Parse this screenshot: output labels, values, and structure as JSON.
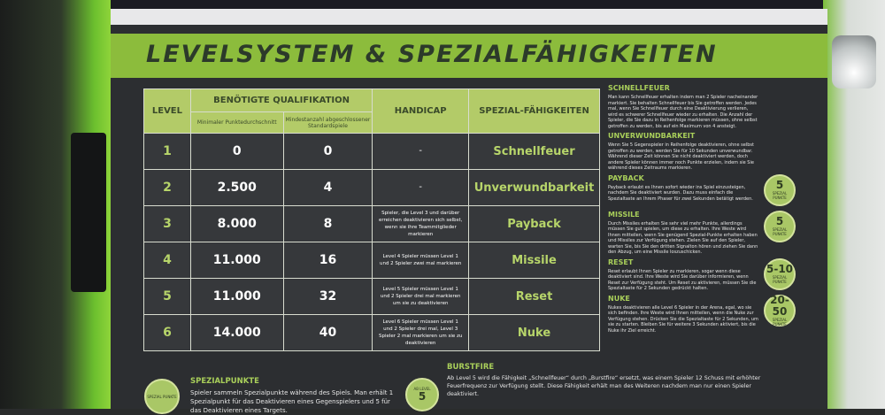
{
  "title": "LEVELSYSTEM & SPEZIALFÄHIGKEITEN",
  "table": {
    "headers": {
      "level": "LEVEL",
      "qualifikation": "BENÖTIGTE QUALIFIKATION",
      "punkte": "Minimaler Punktedurchschnitt",
      "spiele": "Mindestanzahl abgeschlossener Standardspiele",
      "handicap": "HANDICAP",
      "spezial": "SPEZIAL-FÄHIGKEITEN"
    },
    "rows": [
      {
        "level": "1",
        "punkte": "0",
        "spiele": "0",
        "handicap": "-",
        "spezial": "Schnellfeuer"
      },
      {
        "level": "2",
        "punkte": "2.500",
        "spiele": "4",
        "handicap": "-",
        "spezial": "Unverwundbarkeit"
      },
      {
        "level": "3",
        "punkte": "8.000",
        "spiele": "8",
        "handicap": "Spieler, die Level 3 und darüber erreichen deaktivieren sich selbst, wenn sie ihre Teammitglieder markieren",
        "spezial": "Payback"
      },
      {
        "level": "4",
        "punkte": "11.000",
        "spiele": "16",
        "handicap": "Level 4 Spieler müssen Level 1 und 2 Spieler zwei mal markieren",
        "spezial": "Missile"
      },
      {
        "level": "5",
        "punkte": "11.000",
        "spiele": "32",
        "handicap": "Level 5 Spieler müssen Level 1 und 2 Spieler drei mal markieren um sie zu deaktivieren",
        "spezial": "Reset"
      },
      {
        "level": "6",
        "punkte": "14.000",
        "spiele": "40",
        "handicap": "Level 6 Spieler müssen Level 1 und 2 Spieler drei mal, Level 3 Spieler 2 mal markieren um sie zu deaktivieren",
        "spezial": "Nuke"
      }
    ]
  },
  "abilities": [
    {
      "title": "SCHNELLFEUER",
      "text": "Man kann Schnellfeuer erhalten indem man 2 Spieler nacheinander markiert. Sie behalten Schnellfeuer bis Sie getroffen werden. Jedes mal, wenn Sie Schnellfeuer durch eine Deaktivierung verlieren, wird es schwerer Schnellfeuer wieder zu erhalten. Die Anzahl der Spieler, die Sie dazu in Reihenfolge markieren müssen, ohne selbst getroffen zu werden, bis auf ein Maximum von 4 ansteigt."
    },
    {
      "title": "UNVERWUNDBARKEIT",
      "text": "Wenn Sie 5 Gegenspieler in Reihenfolge deaktivieren, ohne selbst getroffen zu werden, werden Sie für 10 Sekunden unverwundbar. Während dieser Zeit können Sie nicht deaktiviert werden, doch andere Spieler können immer noch Punkte erzielen, indem sie Sie während dieses Zeitraums markieren."
    },
    {
      "title": "PAYBACK",
      "text": "Payback erlaubt es Ihnen sofort wieder ins Spiel einzusteigen, nachdem Sie deaktiviert wurden. Dazu muss einfach die Spezialtaste an Ihrem Phaser für zwei Sekunden betätigt werden.",
      "badge": "5"
    },
    {
      "title": "MISSILE",
      "text": "Durch Missiles erhalten Sie sehr viel mehr Punkte, allerdings müssen Sie gut spielen, um diese zu erhalten. Ihre Weste wird Ihnen mitteilen, wenn Sie genügend Spezial-Punkte erhalten haben und Missiles zur Verfügung stehen. Zielen Sie auf den Spieler, warten Sie, bis Sie den dritten Signalton hören und ziehen Sie dann den Abzug, um eine Missile loszuschicken.",
      "badge": "5"
    },
    {
      "title": "RESET",
      "text": "Reset erlaubt Ihnen Spieler zu markieren, sogar wenn diese deaktiviert sind. Ihre Weste wird Sie darüber informieren, wenn Reset zur Verfügung steht. Um Reset zu aktivieren, müssen Sie die Spezialtaste für 2 Sekunden gedrückt halten.",
      "badge": "5-10"
    },
    {
      "title": "NUKE",
      "text": "Nukes deaktivieren alle Level 6 Spieler in der Arena, egal, wo sie sich befinden. Ihre Weste wird Ihnen mitteilen, wenn die Nuke zur Verfügung stehen. Drücken Sie die Spezialtaste für 2 Sekunden, um sie zu starten. Bleiben Sie für weitere 3 Sekunden aktiviert, bis die Nuke ihr Ziel erreicht.",
      "badge": "20-50"
    }
  ],
  "badge_label": "SPEZIAL PUNKTE",
  "spezialpunkte": {
    "title": "SPEZIALPUNKTE",
    "text": "Spieler sammeln Spezialpunkte während des Spiels. Man erhält 1 Spezialpunkt für das Deaktivieren eines Gegenspielers und 5 für das Deaktivieren eines Targets."
  },
  "burstfire": {
    "title": "BURSTFIRE",
    "badge_top": "AB LEVEL",
    "badge_num": "5",
    "text": "Ab Level 5 wird die Fähigkeit „Schnellfeuer“ durch „Burstfire“ ersetzt, was einem Spieler 12 Schuss mit erhöhter Feuerfrequenz zur Verfügung stellt. Diese Fähigkeit erhält man des Weiteren nachdem man nur einen Spieler deaktiviert."
  },
  "colors": {
    "accent": "#8cbc3c",
    "header": "#b3cb68",
    "panel": "#2c2e31"
  }
}
